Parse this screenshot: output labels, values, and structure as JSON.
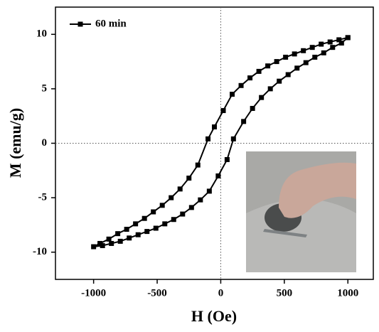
{
  "chart_data": {
    "type": "line",
    "xlabel": "H (Oe)",
    "ylabel": "M (emu/g)",
    "xlim": [
      -1300,
      1200
    ],
    "ylim": [
      -12.5,
      12.5
    ],
    "xticks": [
      -1000,
      -500,
      0,
      500,
      1000
    ],
    "yticks": [
      -10,
      -5,
      0,
      5,
      10
    ],
    "legend": "upper left",
    "series": [
      {
        "name": "60 min",
        "color": "#000000",
        "x": [
          1000,
          930,
          860,
          790,
          720,
          650,
          580,
          510,
          440,
          370,
          300,
          230,
          160,
          90,
          20,
          -50,
          -100,
          -180,
          -250,
          -320,
          -390,
          -460,
          -530,
          -600,
          -670,
          -740,
          -810,
          -880,
          -950,
          -1000,
          -930,
          -860,
          -790,
          -720,
          -650,
          -580,
          -510,
          -440,
          -370,
          -300,
          -230,
          -160,
          -90,
          -20,
          50,
          100,
          180,
          250,
          320,
          390,
          460,
          530,
          600,
          670,
          740,
          810,
          880,
          950,
          1000
        ],
        "values": [
          9.7,
          9.5,
          9.3,
          9.1,
          8.8,
          8.5,
          8.2,
          7.9,
          7.5,
          7.1,
          6.6,
          6.0,
          5.3,
          4.5,
          3.0,
          1.5,
          0.4,
          -2.0,
          -3.2,
          -4.2,
          -5.0,
          -5.7,
          -6.3,
          -6.9,
          -7.4,
          -7.9,
          -8.3,
          -8.8,
          -9.2,
          -9.5,
          -9.4,
          -9.2,
          -9.0,
          -8.7,
          -8.4,
          -8.1,
          -7.8,
          -7.4,
          -7.0,
          -6.5,
          -5.9,
          -5.2,
          -4.4,
          -3.0,
          -1.5,
          0.4,
          2.0,
          3.2,
          4.2,
          5.0,
          5.7,
          6.3,
          6.9,
          7.4,
          7.9,
          8.3,
          8.8,
          9.2,
          9.7
        ]
      }
    ]
  }
}
